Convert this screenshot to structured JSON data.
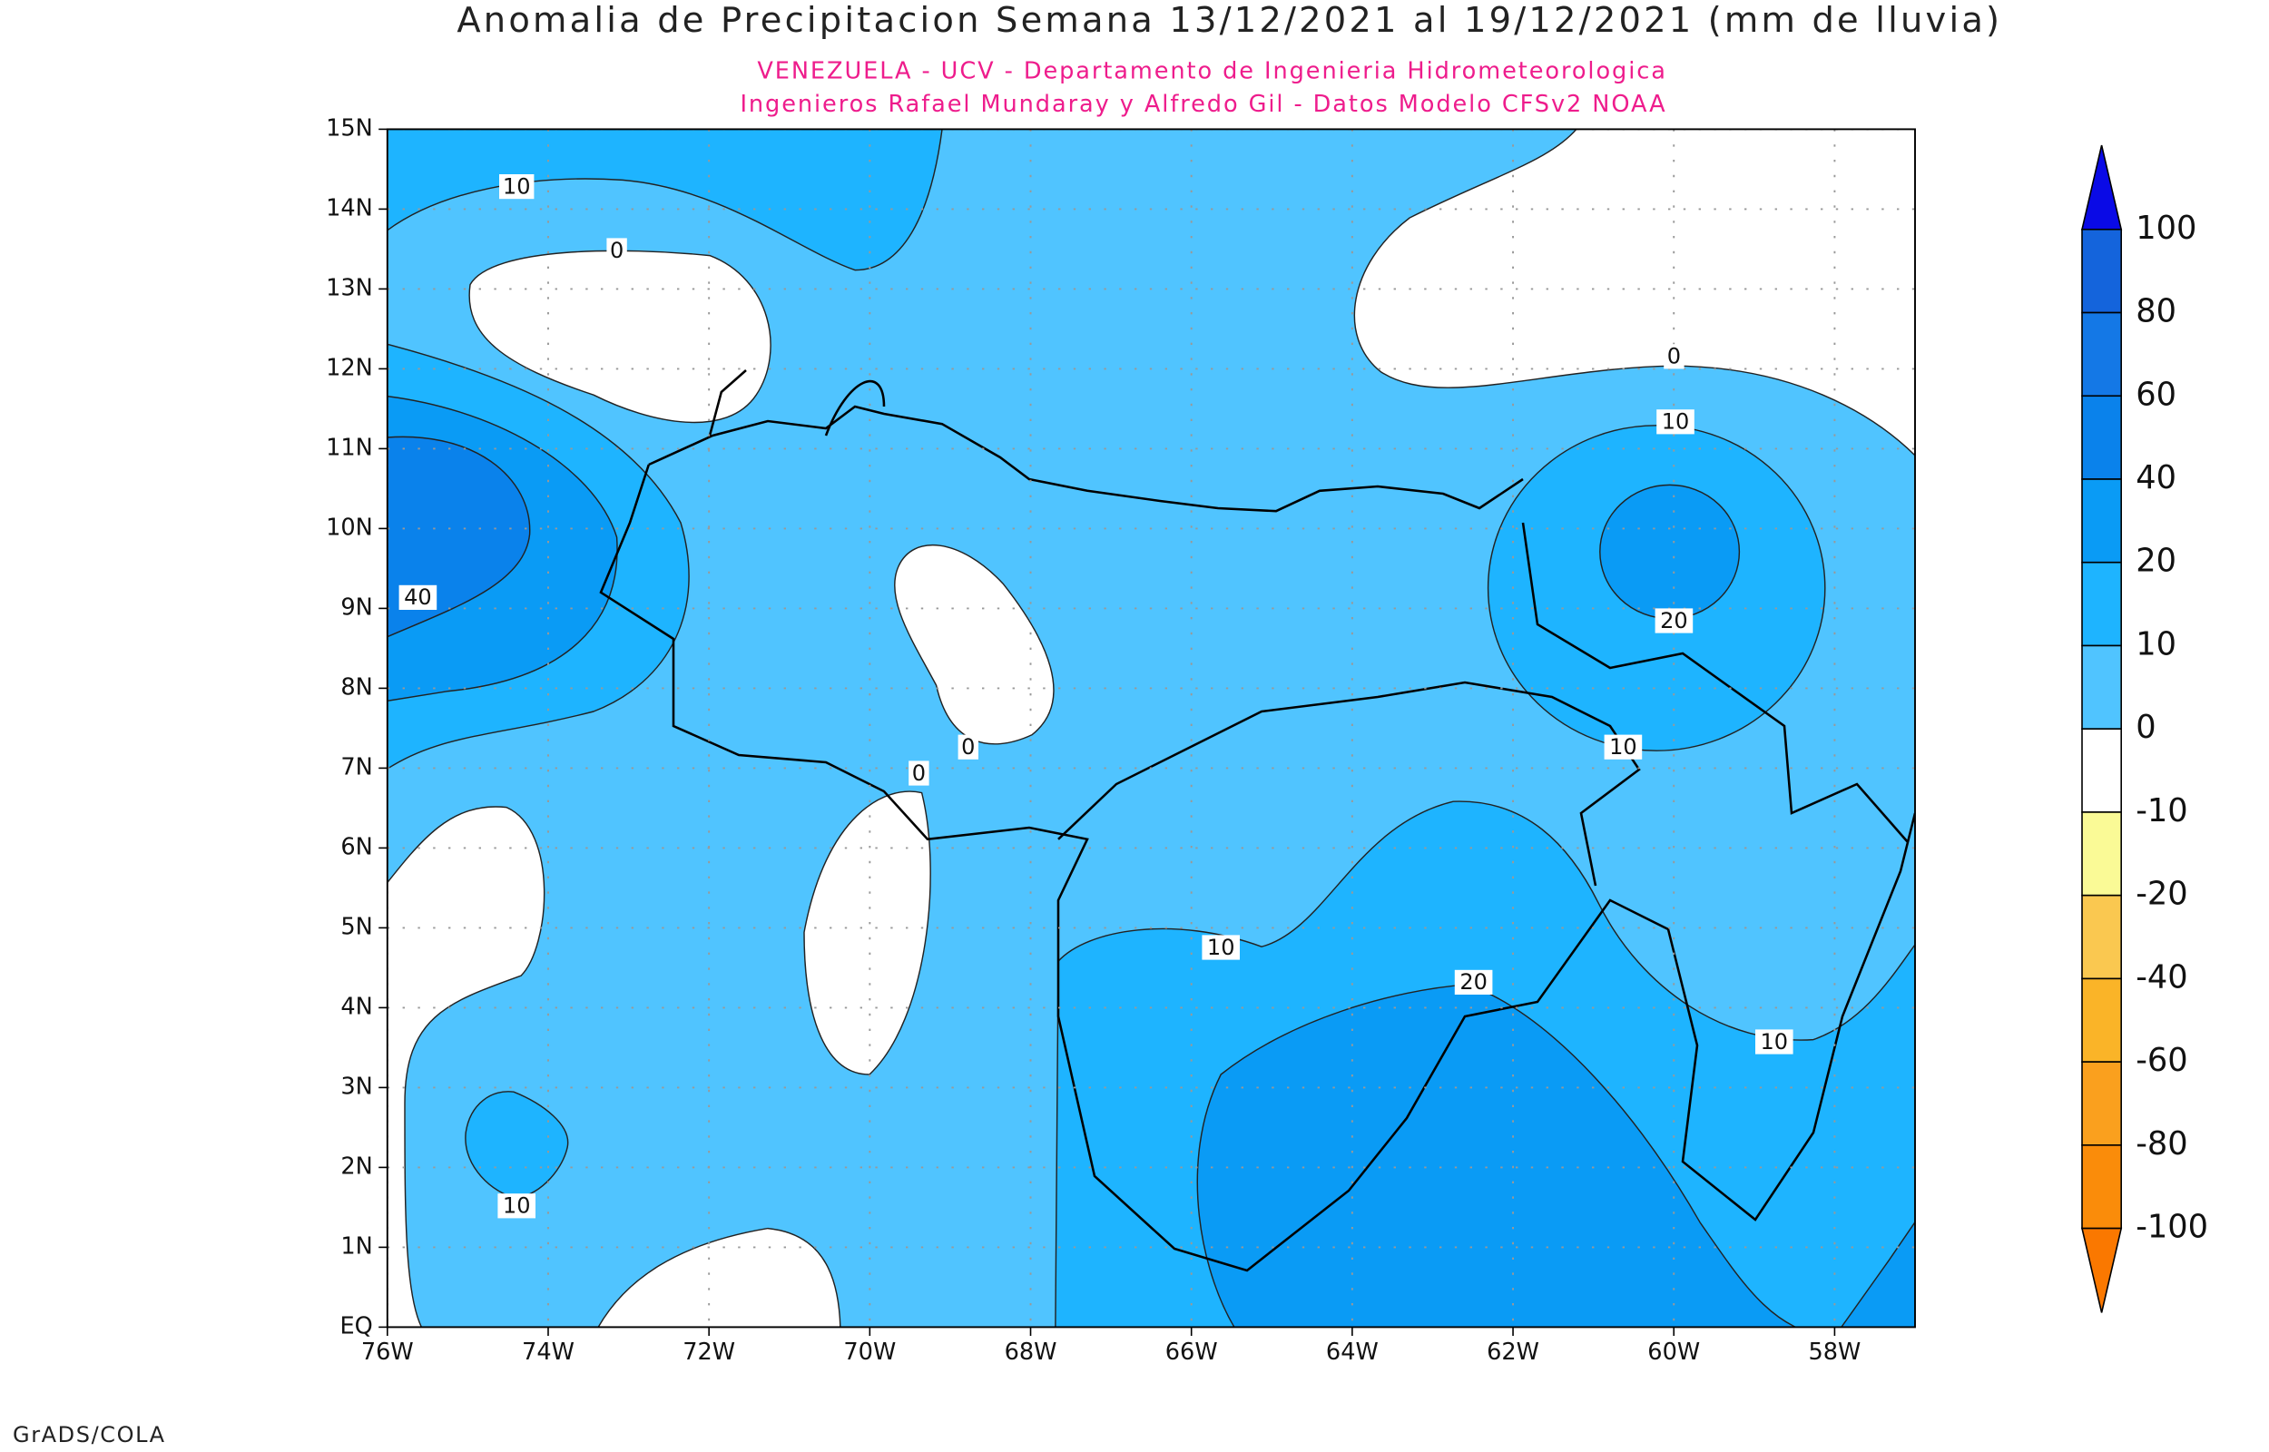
{
  "title": "Anomalia de Precipitacion Semana 13/12/2021 al 19/12/2021 (mm de lluvia)",
  "subtitle": [
    "VENEZUELA - UCV - Departamento de Ingenieria Hidrometeorologica",
    "Ingenieros Rafael Mundaray y Alfredo Gil - Datos Modelo CFSv2 NOAA"
  ],
  "footer": "GrADS/COLA",
  "map": {
    "xlim": [
      -76,
      -57
    ],
    "ylim": [
      0,
      15
    ],
    "xticks": [
      {
        "value": -76,
        "label": "76W"
      },
      {
        "value": -74,
        "label": "74W"
      },
      {
        "value": -72,
        "label": "72W"
      },
      {
        "value": -70,
        "label": "70W"
      },
      {
        "value": -68,
        "label": "68W"
      },
      {
        "value": -66,
        "label": "66W"
      },
      {
        "value": -64,
        "label": "64W"
      },
      {
        "value": -62,
        "label": "62W"
      },
      {
        "value": -60,
        "label": "60W"
      },
      {
        "value": -58,
        "label": "58W"
      }
    ],
    "yticks": [
      {
        "value": 0,
        "label": "EQ"
      },
      {
        "value": 1,
        "label": "1N"
      },
      {
        "value": 2,
        "label": "2N"
      },
      {
        "value": 3,
        "label": "3N"
      },
      {
        "value": 4,
        "label": "4N"
      },
      {
        "value": 5,
        "label": "5N"
      },
      {
        "value": 6,
        "label": "6N"
      },
      {
        "value": 7,
        "label": "7N"
      },
      {
        "value": 8,
        "label": "8N"
      },
      {
        "value": 9,
        "label": "9N"
      },
      {
        "value": 10,
        "label": "10N"
      },
      {
        "value": 11,
        "label": "11N"
      },
      {
        "value": 12,
        "label": "12N"
      },
      {
        "value": 13,
        "label": "13N"
      },
      {
        "value": 14,
        "label": "14N"
      },
      {
        "value": 15,
        "label": "15N"
      }
    ],
    "grid": true,
    "contour_labels": [
      10,
      0,
      40,
      0,
      0,
      0,
      10,
      10,
      20,
      10,
      20,
      10,
      10
    ]
  },
  "colorbar": {
    "levels": [
      100,
      80,
      60,
      40,
      20,
      10,
      0,
      -10,
      -20,
      -40,
      -60,
      -80,
      -100
    ],
    "colors": [
      "#0a0ae6",
      "#1464dc",
      "#1478e6",
      "#0a82eb",
      "#0a9bf5",
      "#1eb4ff",
      "#50c4ff",
      "#ffffff",
      "#fafa96",
      "#fac850",
      "#fab428",
      "#faa01e",
      "#fa8c0a",
      "#fa7800"
    ]
  }
}
